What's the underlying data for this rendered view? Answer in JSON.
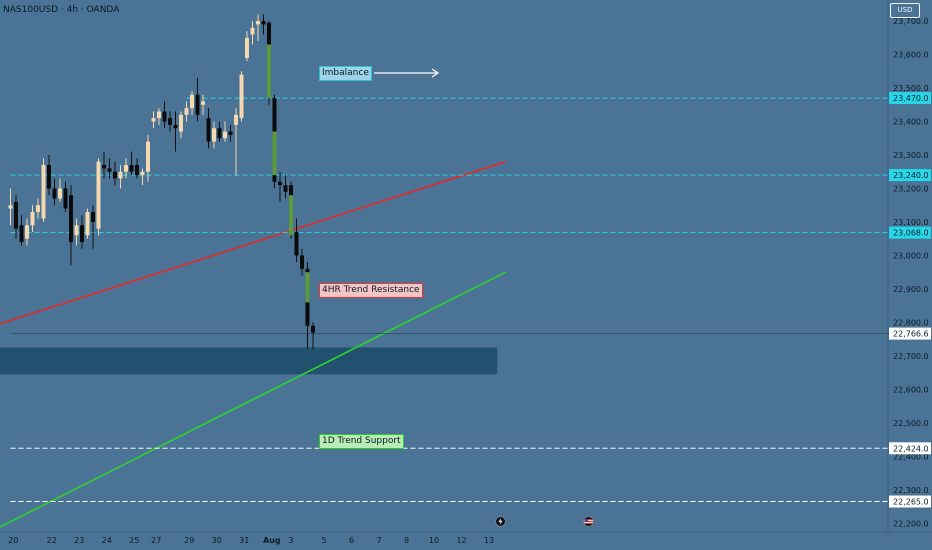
{
  "header": {
    "symbol": "NAS100USD · 4h · OANDA",
    "currency": "USD"
  },
  "annotations": {
    "imbalance": "Imbalance",
    "resistance": "4HR Trend Resistance",
    "support": "1D Trend Support"
  },
  "events": [
    {
      "icon": "earnings-icon"
    },
    {
      "icon": "us-flag-icon"
    }
  ],
  "colors": {
    "background": "#4a7395",
    "bull_body": "#f4d9b0",
    "bear_body": "#0b0b0b",
    "imbalance_fill": "#5c9a3c",
    "resistance_line": "#e22a2a",
    "support_line": "#2ed32e",
    "level_line": "#27d7e8",
    "zone": "#22506f"
  },
  "chart_data": {
    "type": "candlestick",
    "ylim": [
      22180,
      23745
    ],
    "yticks": [
      "23,700.0",
      "23,600.0",
      "23,500.0",
      "23,400.0",
      "23,300.0",
      "23,200.0",
      "23,100.0",
      "23,000.0",
      "22,900.0",
      "22,800.0",
      "22,700.0",
      "22,600.0",
      "22,500.0",
      "22,400.0",
      "22,300.0",
      "22,200.0"
    ],
    "ytick_values": [
      23700,
      23600,
      23500,
      23400,
      23300,
      23200,
      23100,
      23000,
      22900,
      22800,
      22700,
      22600,
      22500,
      22400,
      22300,
      22200
    ],
    "xticks": [
      "20",
      "22",
      "23",
      "24",
      "25",
      "27",
      "29",
      "30",
      "31",
      "Aug",
      "3",
      "5",
      "6",
      "7",
      "8",
      "10",
      "12",
      "13"
    ],
    "xtick_positions": [
      0.5,
      7.5,
      12.5,
      17.5,
      22.5,
      26.5,
      32.5,
      37.5,
      42.5,
      47.5,
      51,
      57,
      62,
      67,
      72,
      77,
      82,
      87
    ],
    "price_labels": [
      {
        "text": "23,470.0",
        "value": 23470,
        "style": "cyan"
      },
      {
        "text": "23,240.0",
        "value": 23240,
        "style": "cyan"
      },
      {
        "text": "23,068.0",
        "value": 23068,
        "style": "cyan"
      },
      {
        "text": "22,766.6",
        "value": 22766.6,
        "style": "white"
      },
      {
        "text": "22,424.0",
        "value": 22424,
        "style": "white"
      },
      {
        "text": "22,265.0",
        "value": 22265,
        "style": "white"
      }
    ],
    "horizontal_levels": [
      {
        "value": 23470,
        "style": "cyan-dashed",
        "from_index": 32
      },
      {
        "value": 23240,
        "style": "cyan-dashed",
        "from_index": 0
      },
      {
        "value": 23068,
        "style": "cyan-dashed",
        "from_index": 0
      },
      {
        "value": 22766.6,
        "style": "current-price",
        "from_index": 0
      },
      {
        "value": 22424,
        "style": "white-dashed",
        "from_index": 0
      },
      {
        "value": 22265,
        "style": "white-dashed",
        "from_index": 0
      }
    ],
    "zone": {
      "top": 22725,
      "bottom": 22645,
      "from_index": -2,
      "to_index": 88.5
    },
    "trendlines": [
      {
        "name": "resistance",
        "start": [
          -3,
          22790
        ],
        "end": [
          90,
          23280
        ]
      },
      {
        "name": "support",
        "start": [
          -3,
          22180
        ],
        "end": [
          90,
          22950
        ]
      }
    ],
    "candles": [
      {
        "o": 23140,
        "h": 23200,
        "c": 23150,
        "l": 23090
      },
      {
        "o": 23160,
        "h": 23180,
        "c": 23080,
        "l": 23050
      },
      {
        "o": 23090,
        "h": 23120,
        "c": 23040,
        "l": 23030
      },
      {
        "o": 23050,
        "h": 23110,
        "c": 23090,
        "l": 23030
      },
      {
        "o": 23090,
        "h": 23150,
        "c": 23130,
        "l": 23070
      },
      {
        "o": 23130,
        "h": 23170,
        "c": 23150,
        "l": 23110
      },
      {
        "o": 23110,
        "h": 23290,
        "c": 23270,
        "l": 23100
      },
      {
        "o": 23270,
        "h": 23300,
        "c": 23200,
        "l": 23180
      },
      {
        "o": 23200,
        "h": 23230,
        "c": 23170,
        "l": 23150
      },
      {
        "o": 23170,
        "h": 23230,
        "c": 23200,
        "l": 23160
      },
      {
        "o": 23200,
        "h": 23220,
        "c": 23140,
        "l": 23130
      },
      {
        "o": 23180,
        "h": 23210,
        "c": 23040,
        "l": 22970
      },
      {
        "o": 23060,
        "h": 23110,
        "c": 23090,
        "l": 23030
      },
      {
        "o": 23090,
        "h": 23120,
        "c": 23040,
        "l": 23020
      },
      {
        "o": 23060,
        "h": 23140,
        "c": 23130,
        "l": 23050
      },
      {
        "o": 23130,
        "h": 23150,
        "c": 23100,
        "l": 23020
      },
      {
        "o": 23080,
        "h": 23290,
        "c": 23280,
        "l": 23060
      },
      {
        "o": 23270,
        "h": 23310,
        "c": 23260,
        "l": 23230
      },
      {
        "o": 23260,
        "h": 23290,
        "c": 23250,
        "l": 23230
      },
      {
        "o": 23250,
        "h": 23280,
        "c": 23230,
        "l": 23210
      },
      {
        "o": 23230,
        "h": 23270,
        "c": 23250,
        "l": 23200
      },
      {
        "o": 23250,
        "h": 23290,
        "c": 23270,
        "l": 23230
      },
      {
        "o": 23270,
        "h": 23310,
        "c": 23250,
        "l": 23240
      },
      {
        "o": 23270,
        "h": 23290,
        "c": 23240,
        "l": 23230
      },
      {
        "o": 23240,
        "h": 23260,
        "c": 23250,
        "l": 23210
      },
      {
        "o": 23250,
        "h": 23360,
        "c": 23340,
        "l": 23220
      },
      {
        "o": 23400,
        "h": 23430,
        "c": 23410,
        "l": 23380
      },
      {
        "o": 23410,
        "h": 23440,
        "c": 23430,
        "l": 23390
      },
      {
        "o": 23430,
        "h": 23460,
        "c": 23400,
        "l": 23380
      },
      {
        "o": 23410,
        "h": 23430,
        "c": 23390,
        "l": 23370
      },
      {
        "o": 23390,
        "h": 23430,
        "c": 23380,
        "l": 23310
      },
      {
        "o": 23370,
        "h": 23430,
        "c": 23420,
        "l": 23350
      },
      {
        "o": 23420,
        "h": 23460,
        "c": 23440,
        "l": 23400
      },
      {
        "o": 23440,
        "h": 23490,
        "c": 23480,
        "l": 23420
      },
      {
        "o": 23480,
        "h": 23530,
        "c": 23420,
        "l": 23400
      },
      {
        "o": 23450,
        "h": 23480,
        "c": 23460,
        "l": 23420
      },
      {
        "o": 23410,
        "h": 23440,
        "c": 23340,
        "l": 23320
      },
      {
        "o": 23340,
        "h": 23400,
        "c": 23380,
        "l": 23320
      },
      {
        "o": 23380,
        "h": 23400,
        "c": 23350,
        "l": 23340
      },
      {
        "o": 23350,
        "h": 23400,
        "c": 23370,
        "l": 23340
      },
      {
        "o": 23370,
        "h": 23390,
        "c": 23360,
        "l": 23340
      },
      {
        "o": 23390,
        "h": 23440,
        "c": 23420,
        "l": 23240
      },
      {
        "o": 23410,
        "h": 23550,
        "c": 23540,
        "l": 23400
      },
      {
        "o": 23590,
        "h": 23670,
        "c": 23650,
        "l": 23580
      },
      {
        "o": 23660,
        "h": 23700,
        "c": 23680,
        "l": 23630
      },
      {
        "o": 23690,
        "h": 23720,
        "c": 23700,
        "l": 23640
      },
      {
        "o": 23700,
        "h": 23720,
        "c": 23690,
        "l": 23660
      },
      {
        "o": 23695,
        "h": 23700,
        "c": 23470,
        "l": 23450,
        "imbalance": [
          23630,
          23470
        ]
      },
      {
        "o": 23470,
        "h": 23480,
        "c": 23220,
        "l": 23200,
        "imbalance": [
          23370,
          23240
        ]
      },
      {
        "o": 23220,
        "h": 23250,
        "c": 23210,
        "l": 23160
      },
      {
        "o": 23210,
        "h": 23240,
        "c": 23190,
        "l": 23170
      },
      {
        "o": 23210,
        "h": 23220,
        "c": 23070,
        "l": 23050,
        "imbalance": [
          23180,
          23060
        ]
      },
      {
        "o": 23070,
        "h": 23110,
        "c": 23000,
        "l": 22980
      },
      {
        "o": 23000,
        "h": 23020,
        "c": 22960,
        "l": 22940
      },
      {
        "o": 22960,
        "h": 22980,
        "c": 22790,
        "l": 22720,
        "imbalance": [
          22950,
          22860
        ]
      },
      {
        "o": 22790,
        "h": 22800,
        "c": 22770,
        "l": 22720
      }
    ]
  }
}
